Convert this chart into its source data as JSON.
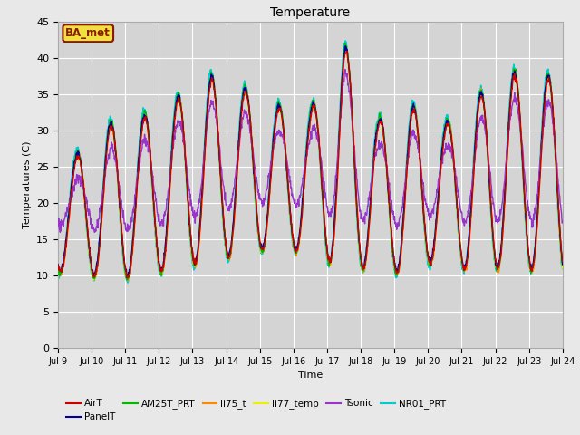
{
  "title": "Temperature",
  "xlabel": "Time",
  "ylabel": "Temperatures (C)",
  "ylim": [
    0,
    45
  ],
  "yticks": [
    0,
    5,
    10,
    15,
    20,
    25,
    30,
    35,
    40,
    45
  ],
  "background_color": "#e8e8e8",
  "plot_bg_color": "#d4d4d4",
  "grid_color": "white",
  "annotation_text": "BA_met",
  "annotation_bg": "#f0e040",
  "annotation_border": "#8b1a00",
  "series": {
    "AirT": {
      "color": "#cc0000",
      "lw": 1.0
    },
    "PanelT": {
      "color": "#000099",
      "lw": 1.0
    },
    "AM25T_PRT": {
      "color": "#00bb00",
      "lw": 1.0
    },
    "li75_t": {
      "color": "#ff8800",
      "lw": 1.2
    },
    "li77_temp": {
      "color": "#eeee00",
      "lw": 1.2
    },
    "Tsonic": {
      "color": "#9933cc",
      "lw": 1.0
    },
    "NR01_PRT": {
      "color": "#00cccc",
      "lw": 1.2
    }
  },
  "legend_order": [
    "AirT",
    "PanelT",
    "AM25T_PRT",
    "li75_t",
    "li77_temp",
    "Tsonic",
    "NR01_PRT"
  ],
  "day_peaks": [
    26,
    30.5,
    31.5,
    34,
    37,
    35.5,
    33,
    32.5,
    41.5,
    31,
    33,
    30.5,
    34.5,
    37.5,
    37
  ],
  "day_mins": [
    10.5,
    9.5,
    10,
    11,
    12,
    13,
    14,
    13,
    11,
    11,
    10,
    13,
    9.5,
    12,
    10
  ]
}
